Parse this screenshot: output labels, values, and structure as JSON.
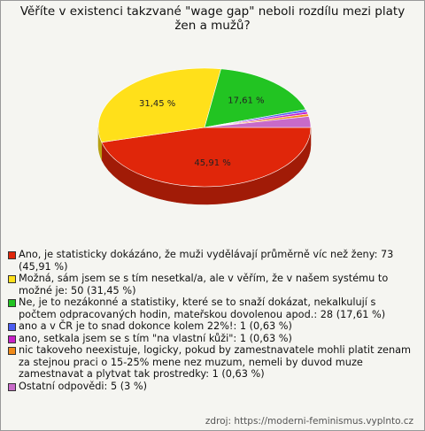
{
  "chart_data": {
    "type": "pie3d",
    "title": "Věříte v existenci takzvané \"wage gap\" neboli rozdílu mezi platy žen a mužů?",
    "categories": [
      "Ano, je statisticky dokázáno, že muži vydělávají průměrně víc než ženy: 73 (45,91 %)",
      "Možná, sám jsem se s tím nesetkal/a, ale v věřím, že v našem systému to možné je: 50 (31,45 %)",
      "Ne, je to nezákonné a statistiky, které se to snaží dokázat, nekalkulují s počtem odpracovaných hodin, mateřskou dovolenou apod.: 28 (17,61 %)",
      "ano a v ČR je to snad dokonce kolem 22%!: 1 (0,63 %)",
      "ano, setkala jsem se s tím \"na vlastní kůži\": 1 (0,63 %)",
      "nic takoveho neexistuje, logicky, pokud by zamestnavatele mohli platit zenam za stejnou praci o 15-25% mene nez muzum, nemeli by duvod muze zamestnavat a plytvat tak prostredky: 1 (0,63 %)",
      "Ostatní odpovědi: 5 (3 %)"
    ],
    "values": [
      45.91,
      31.45,
      17.61,
      0.63,
      0.63,
      0.63,
      3
    ],
    "value_labels": [
      "45,91 %",
      "31,45 %",
      "17,61 %",
      null,
      null,
      null,
      null
    ],
    "colors": [
      "#e0260a",
      "#ffe01a",
      "#22c422",
      "#4a5cf0",
      "#c820c8",
      "#f08a1a",
      "#c86ac8"
    ],
    "source": "zdroj: https://moderni-feminismus.vyplnto.cz"
  }
}
